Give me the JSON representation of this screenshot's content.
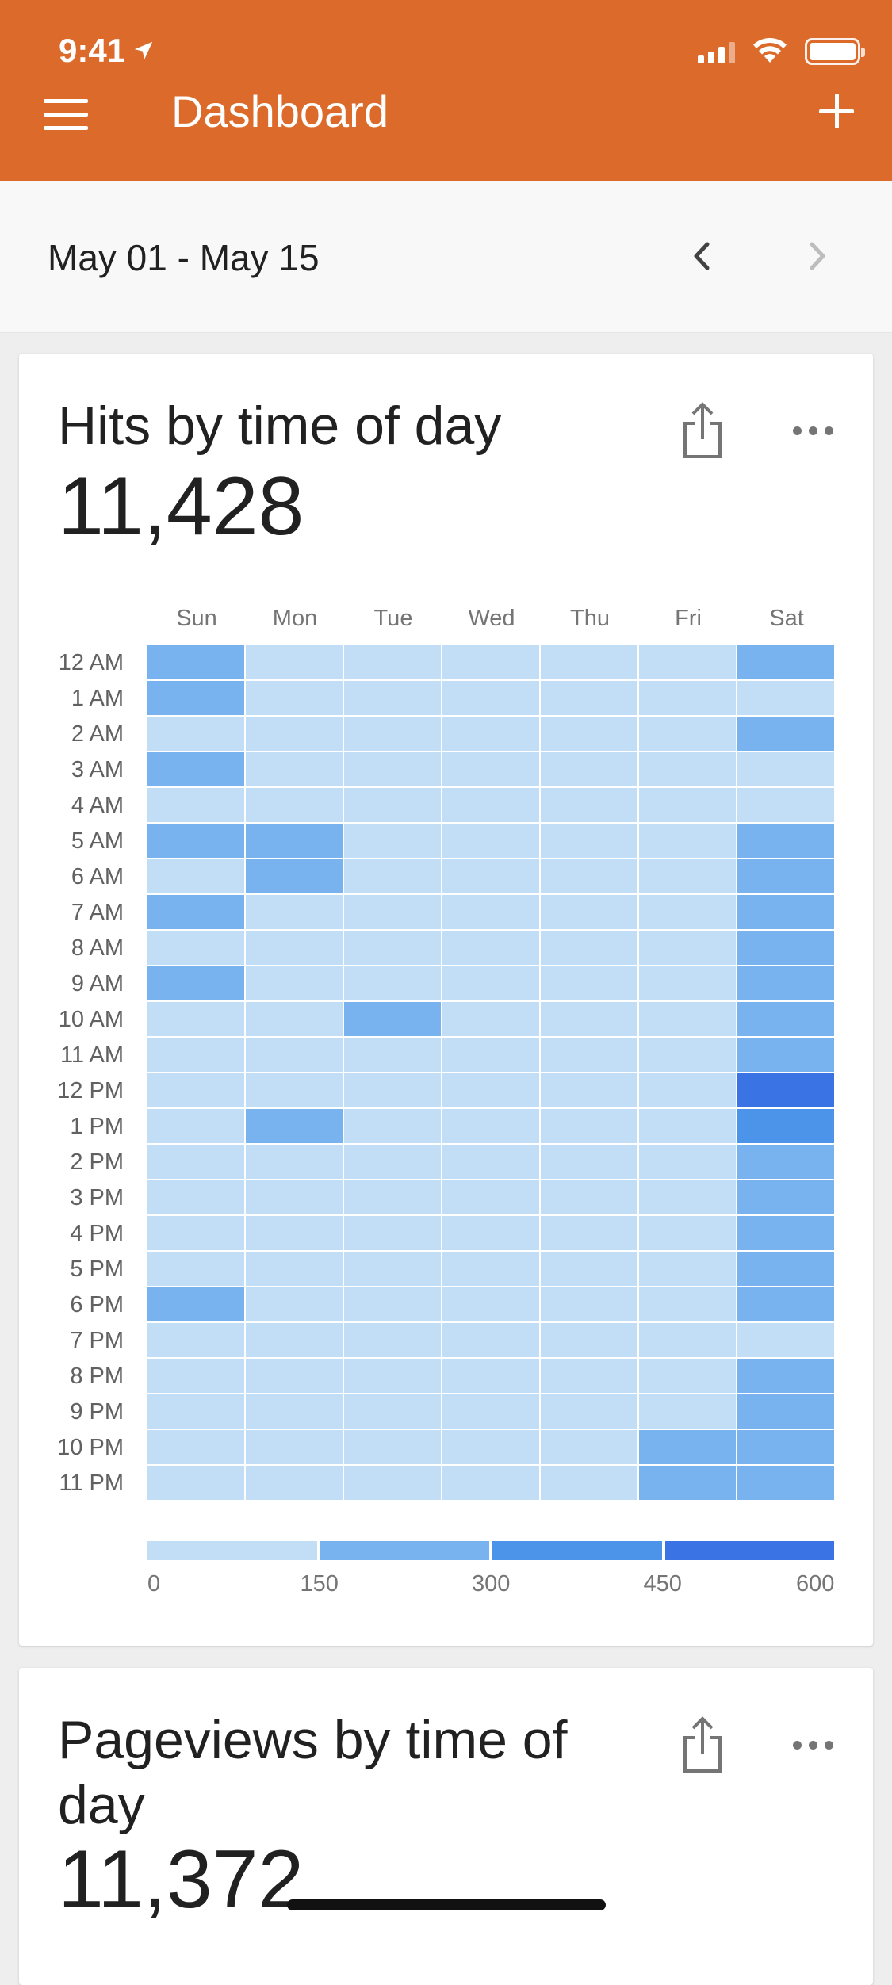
{
  "status_bar": {
    "time": "9:41"
  },
  "header": {
    "title": "Dashboard"
  },
  "date_range": "May 01 - May 15",
  "colors": {
    "header": "#dc6a2b",
    "bin0": "#c2ddf6",
    "bin1": "#78b2ef",
    "bin2": "#4c94ea",
    "bin3": "#3a74e4"
  },
  "card1": {
    "title": "Hits by time of day",
    "value": "11,428"
  },
  "card2": {
    "title": "Pageviews by time of day",
    "value": "11,372"
  },
  "chart_data": {
    "type": "heatmap",
    "columns": [
      "Sun",
      "Mon",
      "Tue",
      "Wed",
      "Thu",
      "Fri",
      "Sat"
    ],
    "rows": [
      "12 AM",
      "1 AM",
      "2 AM",
      "3 AM",
      "4 AM",
      "5 AM",
      "6 AM",
      "7 AM",
      "8 AM",
      "9 AM",
      "10 AM",
      "11 AM",
      "12 PM",
      "1 PM",
      "2 PM",
      "3 PM",
      "4 PM",
      "5 PM",
      "6 PM",
      "7 PM",
      "8 PM",
      "9 PM",
      "10 PM",
      "11 PM"
    ],
    "bin_ranges": [
      [
        0,
        150
      ],
      [
        150,
        300
      ],
      [
        300,
        450
      ],
      [
        450,
        600
      ]
    ],
    "bins": [
      [
        1,
        0,
        0,
        0,
        0,
        0,
        1
      ],
      [
        1,
        0,
        0,
        0,
        0,
        0,
        0
      ],
      [
        0,
        0,
        0,
        0,
        0,
        0,
        1
      ],
      [
        1,
        0,
        0,
        0,
        0,
        0,
        0
      ],
      [
        0,
        0,
        0,
        0,
        0,
        0,
        0
      ],
      [
        1,
        1,
        0,
        0,
        0,
        0,
        1
      ],
      [
        0,
        1,
        0,
        0,
        0,
        0,
        1
      ],
      [
        1,
        0,
        0,
        0,
        0,
        0,
        1
      ],
      [
        0,
        0,
        0,
        0,
        0,
        0,
        1
      ],
      [
        1,
        0,
        0,
        0,
        0,
        0,
        1
      ],
      [
        0,
        0,
        1,
        0,
        0,
        0,
        1
      ],
      [
        0,
        0,
        0,
        0,
        0,
        0,
        1
      ],
      [
        0,
        0,
        0,
        0,
        0,
        0,
        3
      ],
      [
        0,
        1,
        0,
        0,
        0,
        0,
        2
      ],
      [
        0,
        0,
        0,
        0,
        0,
        0,
        1
      ],
      [
        0,
        0,
        0,
        0,
        0,
        0,
        1
      ],
      [
        0,
        0,
        0,
        0,
        0,
        0,
        1
      ],
      [
        0,
        0,
        0,
        0,
        0,
        0,
        1
      ],
      [
        1,
        0,
        0,
        0,
        0,
        0,
        1
      ],
      [
        0,
        0,
        0,
        0,
        0,
        0,
        0
      ],
      [
        0,
        0,
        0,
        0,
        0,
        0,
        1
      ],
      [
        0,
        0,
        0,
        0,
        0,
        0,
        1
      ],
      [
        0,
        0,
        0,
        0,
        0,
        1,
        1
      ],
      [
        0,
        0,
        0,
        0,
        0,
        1,
        1
      ]
    ],
    "legend": {
      "ticks": [
        "0",
        "150",
        "300",
        "450",
        "600"
      ]
    }
  }
}
